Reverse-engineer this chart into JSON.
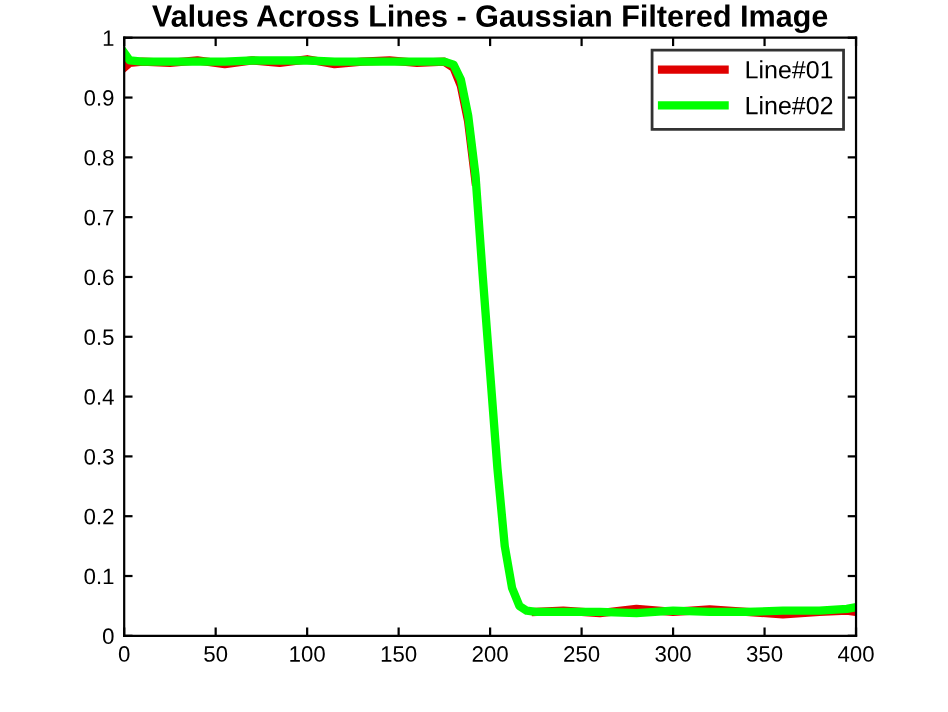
{
  "chart_data": {
    "type": "line",
    "title": "Values Across Lines - Gaussian Filtered Image",
    "xlim": [
      0,
      400
    ],
    "ylim": [
      0,
      1
    ],
    "xticks": [
      0,
      50,
      100,
      150,
      200,
      250,
      300,
      350,
      400
    ],
    "yticks": [
      0,
      0.1,
      0.2,
      0.3,
      0.4,
      0.5,
      0.6,
      0.7,
      0.8,
      0.9,
      1
    ],
    "grid": false,
    "legend": "top right",
    "line_style": "solid",
    "marker": "none",
    "series": [
      {
        "name": "Line#01",
        "color": "#e00000",
        "x": [
          0,
          3,
          10,
          25,
          40,
          55,
          70,
          85,
          100,
          115,
          130,
          145,
          160,
          175,
          180,
          184,
          188,
          192,
          196,
          200,
          204,
          208,
          212,
          216,
          220,
          225,
          240,
          260,
          280,
          300,
          320,
          340,
          360,
          380,
          395,
          400
        ],
        "values": [
          0.95,
          0.958,
          0.96,
          0.958,
          0.962,
          0.956,
          0.962,
          0.958,
          0.964,
          0.956,
          0.96,
          0.962,
          0.958,
          0.96,
          0.95,
          0.92,
          0.86,
          0.76,
          null,
          null,
          null,
          null,
          null,
          null,
          null,
          0.04,
          0.042,
          0.038,
          0.045,
          0.04,
          0.044,
          0.04,
          0.036,
          0.04,
          0.042,
          0.04
        ]
      },
      {
        "name": "Line#02",
        "color": "#00ff00",
        "x": [
          0,
          3,
          10,
          25,
          40,
          55,
          70,
          85,
          100,
          115,
          130,
          145,
          160,
          175,
          180,
          184,
          188,
          192,
          196,
          200,
          204,
          208,
          212,
          216,
          220,
          225,
          240,
          260,
          280,
          300,
          320,
          340,
          360,
          380,
          395,
          400
        ],
        "values": [
          0.975,
          0.962,
          0.96,
          0.96,
          0.96,
          0.96,
          0.962,
          0.962,
          0.962,
          0.96,
          0.96,
          0.96,
          0.96,
          0.96,
          0.955,
          0.93,
          0.87,
          0.77,
          0.6,
          0.44,
          0.28,
          0.15,
          0.08,
          0.05,
          0.042,
          0.04,
          0.04,
          0.04,
          0.038,
          0.042,
          0.04,
          0.04,
          0.042,
          0.042,
          0.045,
          0.048
        ]
      }
    ]
  }
}
